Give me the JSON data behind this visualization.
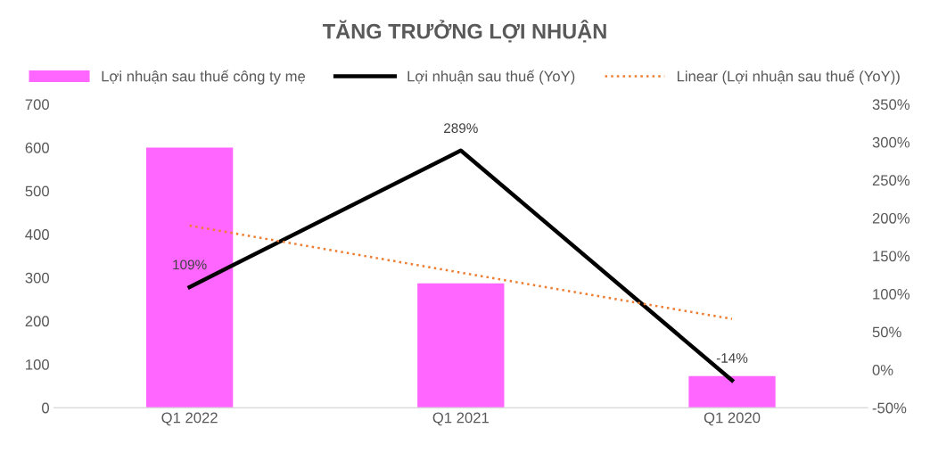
{
  "chart_data": {
    "type": "bar",
    "title": "TĂNG TRƯỞNG LỢI NHUẬN",
    "categories": [
      "Q1 2022",
      "Q1 2021",
      "Q1 2020"
    ],
    "series": [
      {
        "name": "Lợi nhuận sau thuế công ty mẹ",
        "color": "#ff66ff",
        "values": [
          600,
          287,
          73
        ]
      },
      {
        "name": "Lợi nhuận sau thuế (YoY)",
        "type": "line",
        "axis": "y2",
        "color": "#000000",
        "line_style": "solid",
        "values": [
          109,
          289,
          -14
        ],
        "value_labels": [
          "109%",
          "289%",
          "-14%"
        ]
      },
      {
        "name": "Linear (Lợi nhuận sau thuế (YoY))",
        "type": "line",
        "axis": "y2",
        "color": "#ed7d31",
        "line_style": "dotted",
        "values": [
          190,
          128,
          67
        ]
      }
    ],
    "ylim": [
      0,
      700
    ],
    "yticks": [
      0,
      100,
      200,
      300,
      400,
      500,
      600,
      700
    ],
    "y2lim": [
      -50,
      350
    ],
    "y2ticks": [
      {
        "value": -50,
        "label": "-50%"
      },
      {
        "value": 0,
        "label": "0%"
      },
      {
        "value": 50,
        "label": "50%"
      },
      {
        "value": 100,
        "label": "100%"
      },
      {
        "value": 150,
        "label": "150%"
      },
      {
        "value": 200,
        "label": "200%"
      },
      {
        "value": 250,
        "label": "250%"
      },
      {
        "value": 300,
        "label": "300%"
      },
      {
        "value": 350,
        "label": "350%"
      }
    ],
    "grid": false,
    "legend": "top",
    "marker": "none"
  }
}
